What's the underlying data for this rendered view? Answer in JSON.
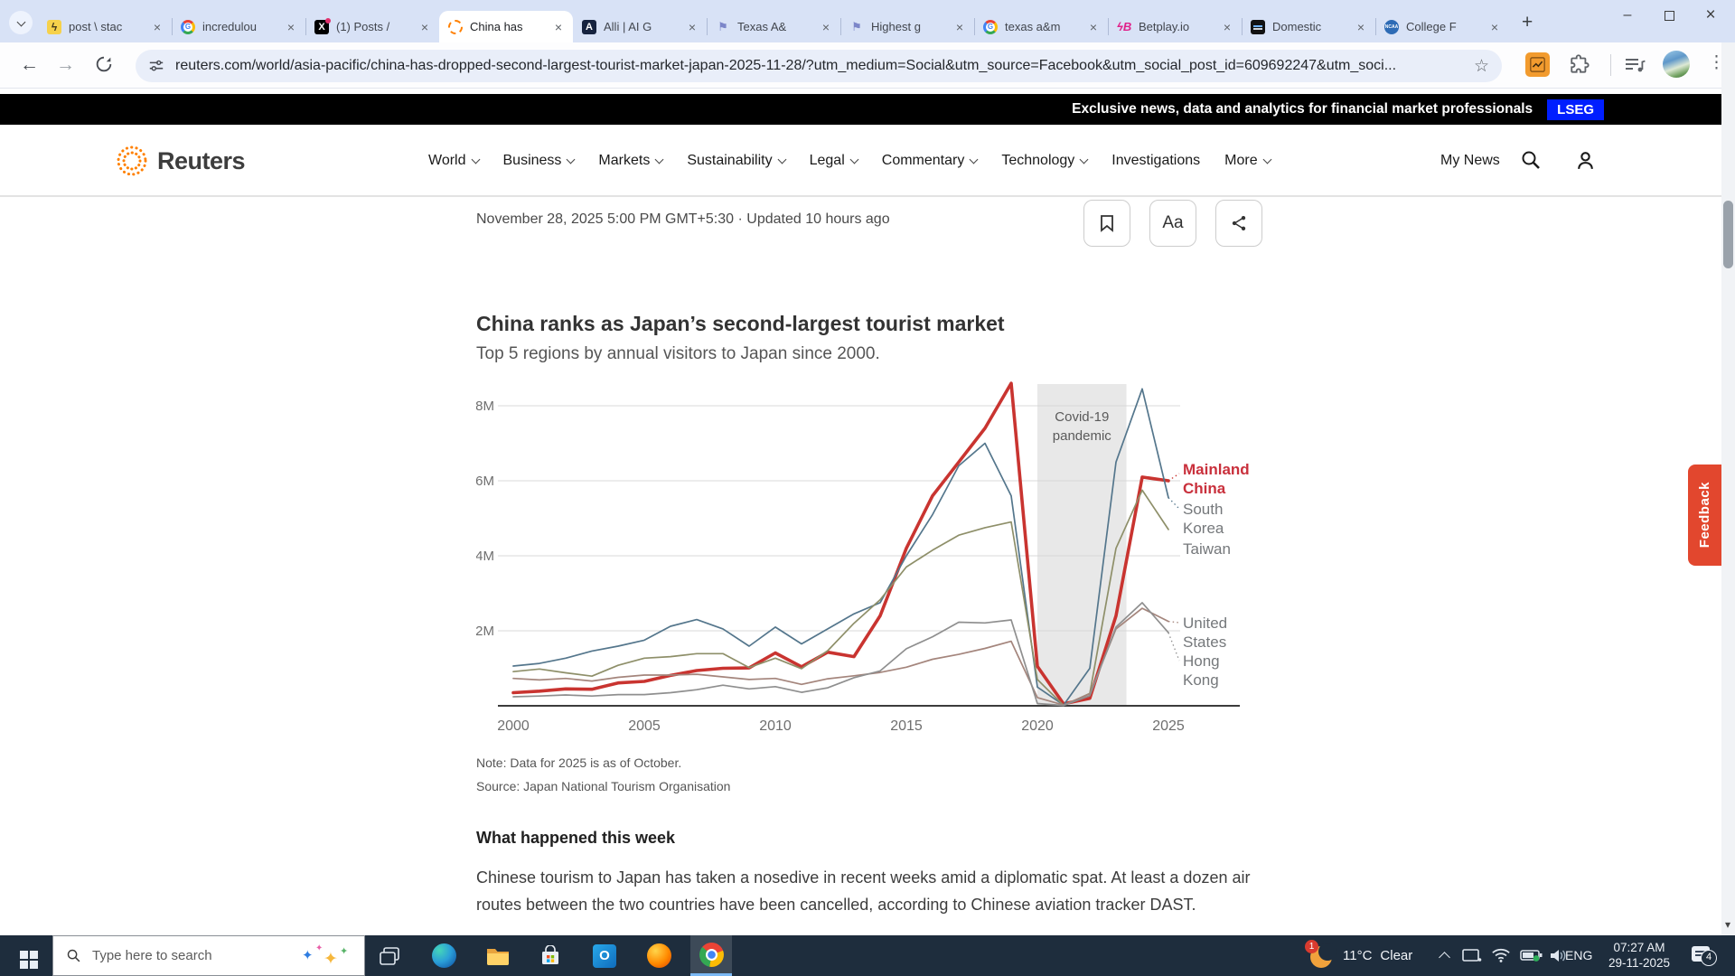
{
  "browser": {
    "tabs": [
      {
        "title": "post \\ stac",
        "icon": "bolt-icon"
      },
      {
        "title": "incredulou",
        "icon": "google-icon"
      },
      {
        "title": "(1) Posts /",
        "icon": "x-icon"
      },
      {
        "title": "China has",
        "icon": "reuters-icon",
        "active": true
      },
      {
        "title": "Alli | AI G",
        "icon": "alli-icon"
      },
      {
        "title": "Texas A&",
        "icon": "flag-icon"
      },
      {
        "title": "Highest g",
        "icon": "flag-icon"
      },
      {
        "title": "texas a&m",
        "icon": "google-icon"
      },
      {
        "title": "Betplay.io",
        "icon": "betplay-icon"
      },
      {
        "title": "Domestic",
        "icon": "site-icon"
      },
      {
        "title": "College F",
        "icon": "ncaa-icon"
      }
    ],
    "url": "reuters.com/world/asia-pacific/china-has-dropped-second-largest-tourist-market-japan-2025-11-28/?utm_medium=Social&utm_source=Facebook&utm_social_post_id=609692247&utm_soci..."
  },
  "lseg_bar": {
    "text": "Exclusive news, data and analytics for financial market professionals",
    "badge": "LSEG",
    "badge_color": "#001EFF"
  },
  "site_header": {
    "brand": "Reuters",
    "nav": [
      {
        "label": "World",
        "dropdown": true
      },
      {
        "label": "Business",
        "dropdown": true
      },
      {
        "label": "Markets",
        "dropdown": true
      },
      {
        "label": "Sustainability",
        "dropdown": true
      },
      {
        "label": "Legal",
        "dropdown": true
      },
      {
        "label": "Commentary",
        "dropdown": true
      },
      {
        "label": "Technology",
        "dropdown": true
      },
      {
        "label": "Investigations",
        "dropdown": false
      },
      {
        "label": "More",
        "dropdown": true
      }
    ],
    "my_news": "My News"
  },
  "article": {
    "dateline": "November 28, 2025 5:00 PM GMT+5:30 · Updated 10 hours ago",
    "text_size_label": "Aa",
    "note": "Note: Data for 2025 is as of October.",
    "source": "Source: Japan National Tourism Organisation",
    "section_heading": "What happened this week",
    "paragraph": "Chinese tourism to Japan has taken a nosedive in recent weeks amid a diplomatic spat. At least a dozen air routes between the two countries have been cancelled, according to Chinese aviation tracker DAST."
  },
  "chart_data": {
    "type": "line",
    "title": "China ranks as Japan’s second-largest tourist market",
    "subtitle": "Top 5 regions by annual visitors to Japan since 2000.",
    "unit": "millions of visitors per year",
    "x_range": [
      2000,
      2025
    ],
    "xticks": [
      2000,
      2005,
      2010,
      2015,
      2020,
      2025
    ],
    "yticks": [
      {
        "v": 2,
        "label": "2M"
      },
      {
        "v": 4,
        "label": "4M"
      },
      {
        "v": 6,
        "label": "6M"
      },
      {
        "v": 8,
        "label": "8M"
      }
    ],
    "ylim": [
      0,
      9
    ],
    "grid": true,
    "legend_position": "right",
    "series": [
      {
        "name": "Mainland China",
        "color": "#c93430",
        "width": 3.6,
        "values": [
          0.35,
          0.39,
          0.45,
          0.44,
          0.61,
          0.65,
          0.81,
          0.94,
          1.0,
          1.01,
          1.41,
          1.04,
          1.43,
          1.31,
          2.4,
          4.2,
          5.6,
          6.5,
          7.4,
          8.6,
          1.05,
          0.05,
          0.2,
          2.4,
          6.1,
          6.0
        ]
      },
      {
        "name": "South Korea",
        "color": "#54768c",
        "width": 1.7,
        "values": [
          1.06,
          1.13,
          1.27,
          1.46,
          1.59,
          1.75,
          2.12,
          2.3,
          2.05,
          1.59,
          2.1,
          1.65,
          2.05,
          2.45,
          2.75,
          4.0,
          5.1,
          6.4,
          7.0,
          5.6,
          0.5,
          0.02,
          1.0,
          6.5,
          8.45,
          5.55
        ]
      },
      {
        "name": "Taiwan",
        "color": "#8e8f69",
        "width": 1.7,
        "values": [
          0.91,
          0.98,
          0.88,
          0.79,
          1.08,
          1.27,
          1.31,
          1.39,
          1.39,
          1.02,
          1.27,
          0.99,
          1.47,
          2.2,
          2.83,
          3.7,
          4.15,
          4.55,
          4.75,
          4.9,
          0.7,
          0.01,
          0.33,
          4.2,
          5.75,
          4.7
        ]
      },
      {
        "name": "United States",
        "color": "#a4857c",
        "width": 1.7,
        "values": [
          0.73,
          0.69,
          0.73,
          0.66,
          0.76,
          0.82,
          0.82,
          0.84,
          0.77,
          0.7,
          0.73,
          0.57,
          0.72,
          0.8,
          0.89,
          1.03,
          1.24,
          1.37,
          1.53,
          1.72,
          0.22,
          0.02,
          0.32,
          2.05,
          2.6,
          2.25
        ]
      },
      {
        "name": "Hong Kong",
        "color": "#8f8f8f",
        "width": 1.7,
        "values": [
          0.24,
          0.26,
          0.29,
          0.26,
          0.3,
          0.3,
          0.35,
          0.43,
          0.55,
          0.45,
          0.51,
          0.36,
          0.48,
          0.75,
          0.93,
          1.52,
          1.84,
          2.23,
          2.21,
          2.29,
          0.06,
          0.01,
          0.27,
          2.1,
          2.75,
          1.95
        ]
      }
    ],
    "annotation": {
      "label_lines": [
        "Covid-19",
        "pandemic"
      ],
      "from": 2020,
      "to": 2023.4,
      "band_color": "#e8e8e8"
    },
    "legend": [
      {
        "name": "Mainland China",
        "lines": [
          "Mainland",
          "China"
        ],
        "color": "#c9303c",
        "bold": true
      },
      {
        "name": "South Korea",
        "lines": [
          "South",
          "Korea"
        ],
        "color": "#75787b"
      },
      {
        "name": "Taiwan",
        "lines": [
          "Taiwan"
        ],
        "color": "#75787b"
      },
      {
        "name": "United States",
        "lines": [
          "United",
          "States"
        ],
        "color": "#75787b"
      },
      {
        "name": "Hong Kong",
        "lines": [
          "Hong",
          "Kong"
        ],
        "color": "#75787b"
      }
    ]
  },
  "feedback": {
    "label": "Feedback",
    "color": "#e2472e"
  },
  "taskbar": {
    "search_placeholder": "Type here to search",
    "weather_temp": "11°C",
    "weather_cond": "Clear",
    "weather_badge": "1",
    "language": "ENG",
    "time": "07:27 AM",
    "date": "29-11-2025",
    "notification_count": "4"
  }
}
